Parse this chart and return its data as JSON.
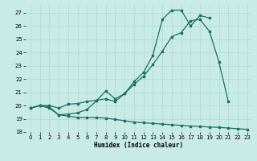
{
  "xlabel": "Humidex (Indice chaleur)",
  "bg_color": "#c8ebe6",
  "grid_color": "#b0d8d2",
  "line_color": "#1a6e62",
  "xlim": [
    -0.5,
    23.5
  ],
  "ylim": [
    18,
    27.6
  ],
  "yticks": [
    18,
    19,
    20,
    21,
    22,
    23,
    24,
    25,
    26,
    27
  ],
  "xticks": [
    0,
    1,
    2,
    3,
    4,
    5,
    6,
    7,
    8,
    9,
    10,
    11,
    12,
    13,
    14,
    15,
    16,
    17,
    18,
    19,
    20,
    21,
    22,
    23
  ],
  "line1_x": [
    0,
    1,
    2,
    3,
    4,
    5,
    6,
    7,
    8,
    9,
    10,
    11,
    12,
    13,
    14,
    15,
    16,
    17,
    18,
    19,
    20,
    21,
    22,
    23
  ],
  "line1_y": [
    19.8,
    20.0,
    19.8,
    19.3,
    19.2,
    19.1,
    19.1,
    19.1,
    19.05,
    18.95,
    18.85,
    18.75,
    18.7,
    18.65,
    18.6,
    18.55,
    18.5,
    18.45,
    18.42,
    18.38,
    18.35,
    18.3,
    18.25,
    18.2
  ],
  "line2_x": [
    0,
    1,
    2,
    3,
    4,
    5,
    6,
    7,
    8,
    9,
    10,
    11,
    12,
    13,
    14,
    15,
    16,
    17,
    18,
    19,
    20,
    21
  ],
  "line2_y": [
    19.8,
    20.0,
    20.0,
    19.8,
    20.1,
    20.15,
    20.3,
    20.4,
    20.5,
    20.3,
    20.9,
    21.6,
    22.2,
    23.1,
    24.1,
    25.2,
    25.5,
    26.4,
    26.5,
    25.6,
    23.3,
    20.3
  ],
  "line3_x": [
    0,
    1,
    2,
    3,
    4,
    5,
    6,
    7,
    8,
    9,
    10,
    11,
    12,
    13,
    14,
    15,
    16,
    17,
    18,
    19
  ],
  "line3_y": [
    19.8,
    20.0,
    19.9,
    19.3,
    19.35,
    19.45,
    19.7,
    20.35,
    21.1,
    20.5,
    20.9,
    21.8,
    22.5,
    23.8,
    26.5,
    27.2,
    27.2,
    26.0,
    26.8,
    26.6
  ]
}
